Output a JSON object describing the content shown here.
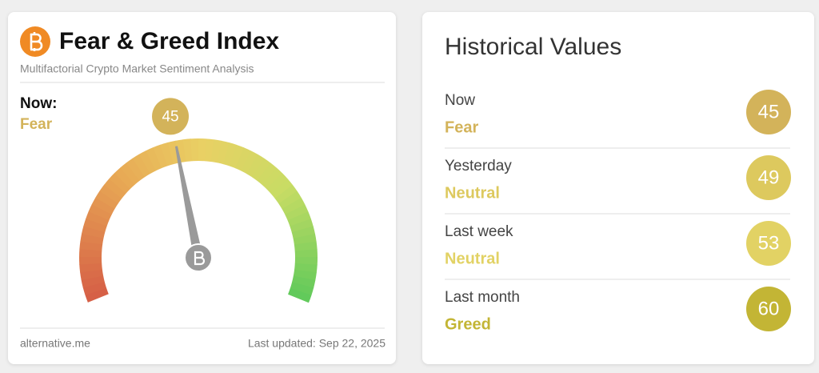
{
  "header": {
    "title": "Fear & Greed Index",
    "subtitle": "Multifactorial Crypto Market Sentiment Analysis"
  },
  "gauge": {
    "now_label": "Now:",
    "classification": "Fear",
    "color": "#d3b35a",
    "value": 45,
    "lim": [
      0,
      100
    ]
  },
  "footer": {
    "source": "alternative.me",
    "updated": "Last updated: Sep 22, 2025"
  },
  "historical": {
    "title": "Historical Values",
    "rows": [
      {
        "period": "Now",
        "classification": "Fear",
        "value": 45,
        "color": "#d3b35a"
      },
      {
        "period": "Yesterday",
        "classification": "Neutral",
        "value": 49,
        "color": "#ddc95e"
      },
      {
        "period": "Last week",
        "classification": "Neutral",
        "value": 53,
        "color": "#e2d264"
      },
      {
        "period": "Last month",
        "classification": "Greed",
        "value": 60,
        "color": "#c3b535"
      }
    ]
  }
}
